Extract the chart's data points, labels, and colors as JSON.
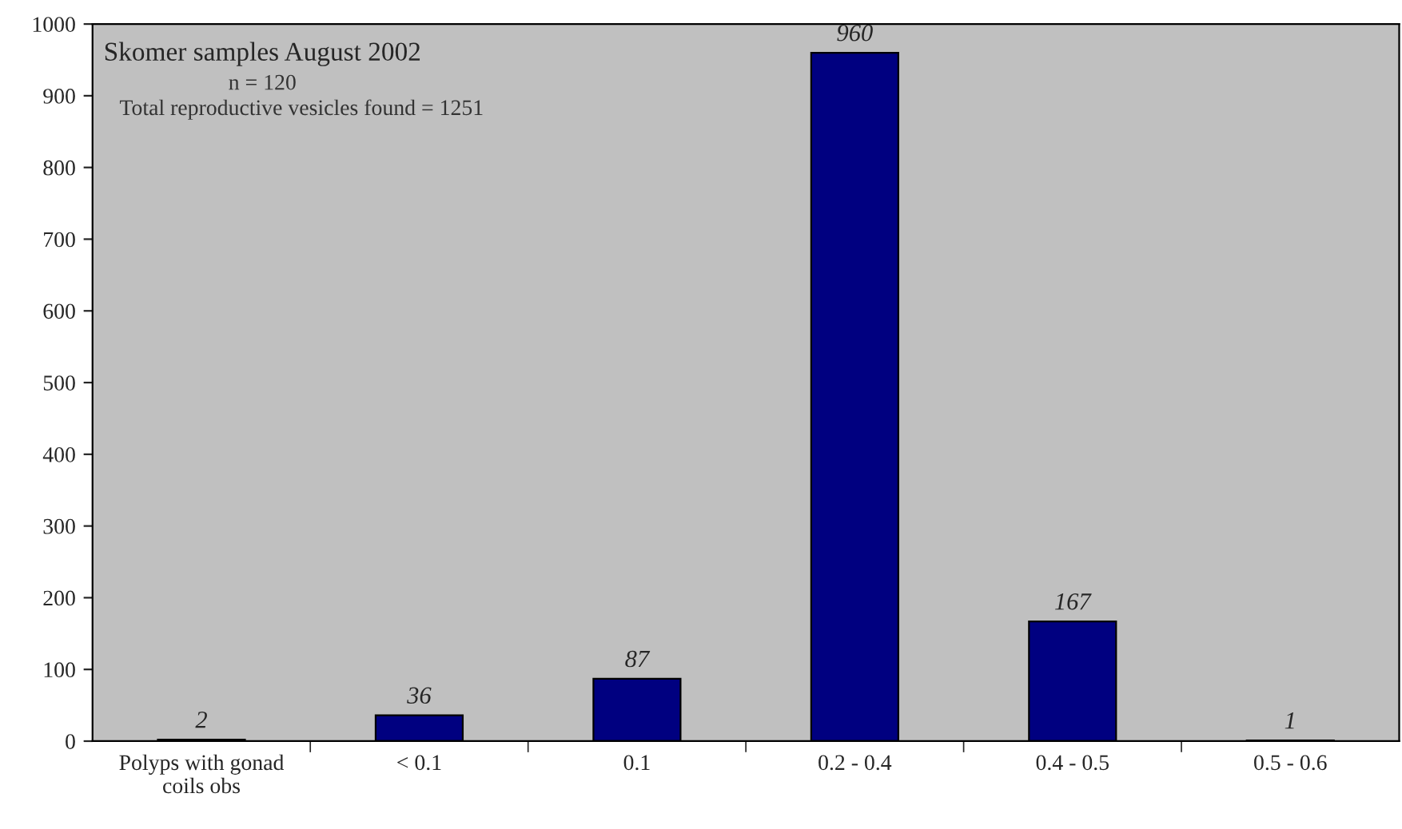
{
  "chart_data": {
    "type": "bar",
    "title": "Skomer samples August 2002",
    "subtitle": "n = 120",
    "annotations": [
      "Total reproductive vesicles found = 1251"
    ],
    "categories": [
      "Polyps with gonad coils obs",
      "< 0.1",
      "0.1",
      "0.2 - 0.4",
      "0.4 - 0.5",
      "0.5 - 0.6"
    ],
    "values": [
      2,
      36,
      87,
      960,
      167,
      1
    ],
    "color": "#000080",
    "ylim": [
      0,
      1000
    ],
    "yticks": [
      0,
      100,
      200,
      300,
      400,
      500,
      600,
      700,
      800,
      900,
      1000
    ],
    "data_labels": true,
    "grid": false,
    "legend": false
  }
}
